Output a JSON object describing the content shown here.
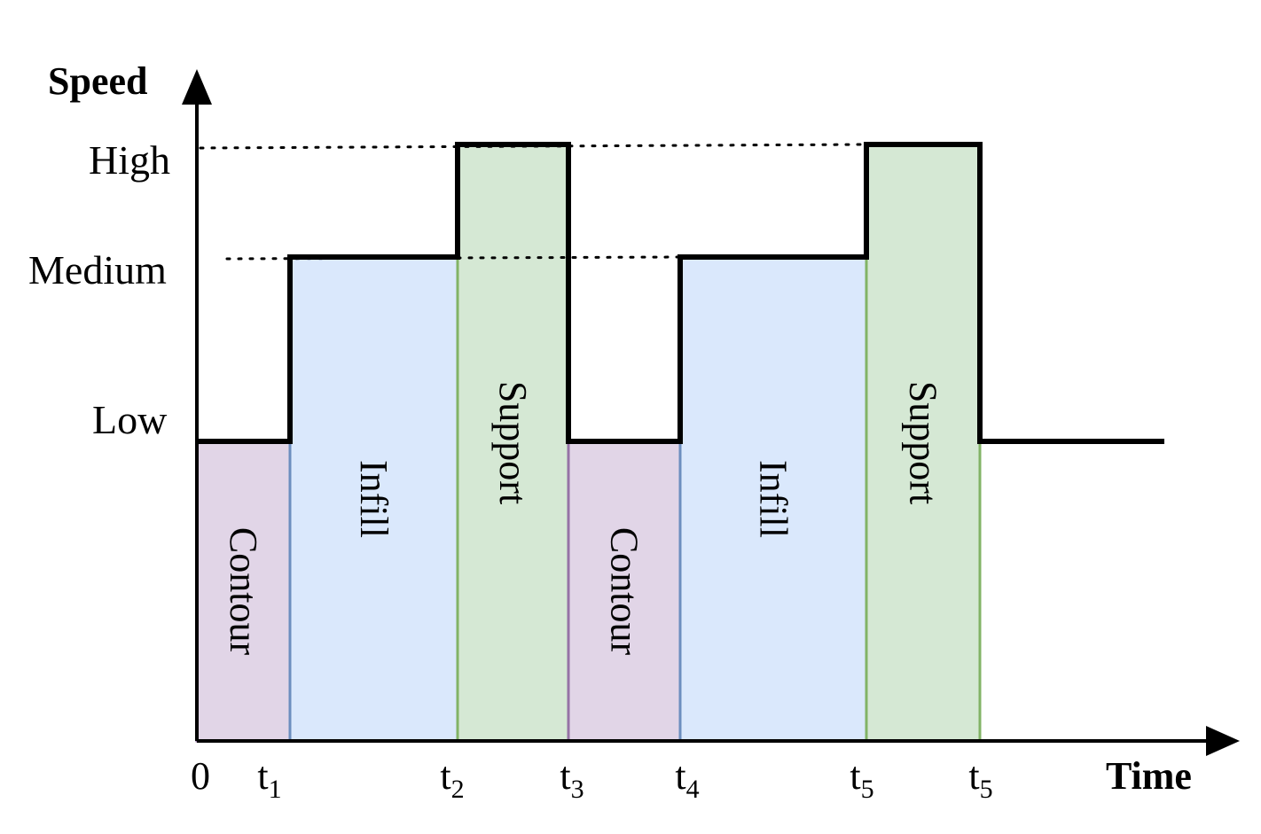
{
  "axes": {
    "y_title": "Speed",
    "x_title": "Time"
  },
  "levels": [
    {
      "key": "high",
      "label": "High"
    },
    {
      "key": "medium",
      "label": "Medium"
    },
    {
      "key": "low",
      "label": "Low"
    }
  ],
  "time_ticks": [
    {
      "base": "0",
      "sub": ""
    },
    {
      "base": "t",
      "sub": "1"
    },
    {
      "base": "t",
      "sub": "2"
    },
    {
      "base": "t",
      "sub": "3"
    },
    {
      "base": "t",
      "sub": "4"
    },
    {
      "base": "t",
      "sub": "5"
    },
    {
      "base": "t",
      "sub": "5"
    }
  ],
  "segments": [
    {
      "name": "contour-1",
      "label": "Contour",
      "start": 0,
      "end": 1,
      "level": "low",
      "type": "contour"
    },
    {
      "name": "infill-1",
      "label": "Infill",
      "start": 1,
      "end": 2,
      "level": "medium",
      "type": "infill"
    },
    {
      "name": "support-1",
      "label": "Support",
      "start": 2,
      "end": 3,
      "level": "high",
      "type": "support"
    },
    {
      "name": "contour-2",
      "label": "Contour",
      "start": 3,
      "end": 4,
      "level": "low",
      "type": "contour"
    },
    {
      "name": "infill-2",
      "label": "Infill",
      "start": 4,
      "end": 5,
      "level": "medium",
      "type": "infill"
    },
    {
      "name": "support-2",
      "label": "Support",
      "start": 5,
      "end": 6,
      "level": "high",
      "type": "support"
    }
  ],
  "tail": {
    "level": "low"
  },
  "colors": {
    "contour": {
      "fill": "#e1d5e7",
      "stroke": "#9673a6"
    },
    "infill": {
      "fill": "#dae8fc",
      "stroke": "#6c8ebf"
    },
    "support": {
      "fill": "#d5e8d4",
      "stroke": "#82b366"
    },
    "line": "#000000"
  }
}
